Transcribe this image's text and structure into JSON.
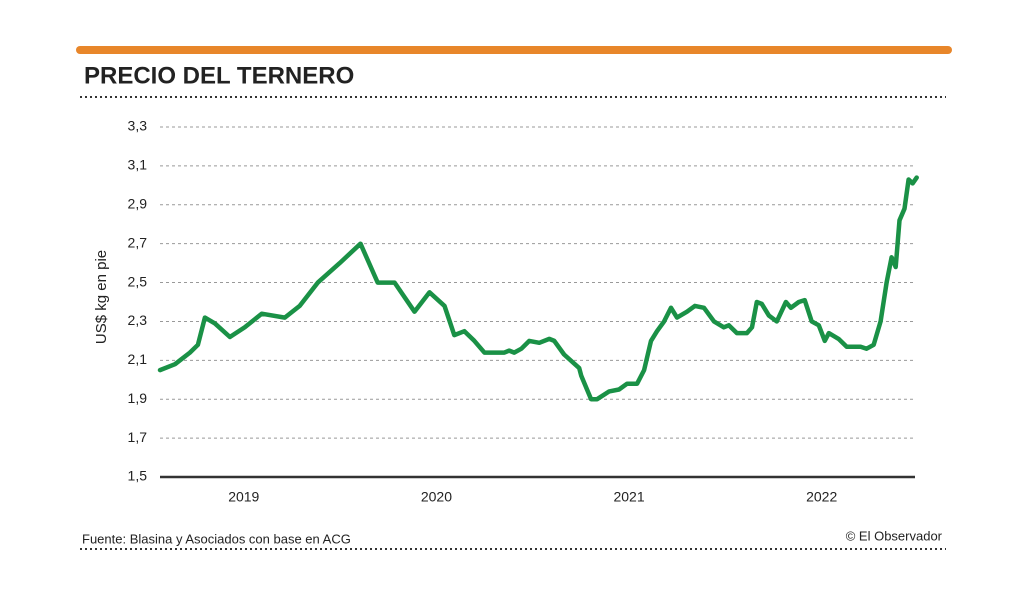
{
  "chart_data": {
    "type": "line",
    "title": "PRECIO DEL TERNERO",
    "y_label": "US$ kg en pie",
    "source": "Fuente: Blasina y Asociados con base en ACG",
    "credit": "© El Observador",
    "x": [
      2018.565,
      2018.643,
      2018.72,
      2018.762,
      2018.798,
      2018.85,
      2018.928,
      2019.005,
      2019.093,
      2019.213,
      2019.29,
      2019.384,
      2019.498,
      2019.606,
      2019.695,
      2019.783,
      2019.886,
      2019.964,
      2020.042,
      2020.093,
      2020.145,
      2020.197,
      2020.249,
      2020.353,
      2020.378,
      2020.404,
      2020.441,
      2020.482,
      2020.534,
      2020.586,
      2020.612,
      2020.663,
      2020.741,
      2020.752,
      2020.803,
      2020.834,
      2020.897,
      2020.948,
      2020.99,
      2021.042,
      2021.078,
      2021.114,
      2021.145,
      2021.182,
      2021.218,
      2021.249,
      2021.301,
      2021.342,
      2021.389,
      2021.441,
      2021.492,
      2021.518,
      2021.56,
      2021.612,
      2021.638,
      2021.663,
      2021.689,
      2021.726,
      2021.767,
      2021.814,
      2021.84,
      2021.881,
      2021.912,
      2021.948,
      2021.985,
      2022.016,
      2022.037,
      2022.088,
      2022.13,
      2022.202,
      2022.233,
      2022.27,
      2022.306,
      2022.337,
      2022.363,
      2022.384,
      2022.404,
      2022.43,
      2022.451,
      2022.472,
      2022.493
    ],
    "series": [
      {
        "name": "US$ kg en pie",
        "color": "#1a9146",
        "values": [
          2.05,
          2.08,
          2.14,
          2.18,
          2.32,
          2.29,
          2.22,
          2.27,
          2.34,
          2.32,
          2.38,
          2.5,
          2.6,
          2.7,
          2.5,
          2.5,
          2.35,
          2.45,
          2.38,
          2.23,
          2.25,
          2.2,
          2.14,
          2.14,
          2.15,
          2.14,
          2.16,
          2.2,
          2.19,
          2.21,
          2.2,
          2.13,
          2.06,
          2.02,
          1.9,
          1.9,
          1.94,
          1.95,
          1.98,
          1.98,
          2.05,
          2.2,
          2.25,
          2.3,
          2.37,
          2.32,
          2.35,
          2.38,
          2.37,
          2.3,
          2.27,
          2.28,
          2.24,
          2.24,
          2.27,
          2.4,
          2.39,
          2.33,
          2.3,
          2.4,
          2.37,
          2.4,
          2.41,
          2.3,
          2.28,
          2.2,
          2.24,
          2.21,
          2.17,
          2.17,
          2.16,
          2.18,
          2.3,
          2.5,
          2.63,
          2.58,
          2.82,
          2.88,
          3.03,
          3.01,
          3.04
        ]
      }
    ],
    "xlim": [
      2018.565,
      2022.5
    ],
    "xticks": [
      2019,
      2020,
      2021,
      2022
    ],
    "ylim": [
      1.5,
      3.3
    ],
    "yticks": [
      {
        "value": 1.5,
        "label": "1,5"
      },
      {
        "value": 1.7,
        "label": "1,7"
      },
      {
        "value": 1.9,
        "label": "1,9"
      },
      {
        "value": 2.1,
        "label": "2,1"
      },
      {
        "value": 2.3,
        "label": "2,3"
      },
      {
        "value": 2.5,
        "label": "2,5"
      },
      {
        "value": 2.7,
        "label": "2,7"
      },
      {
        "value": 2.9,
        "label": "2,9"
      },
      {
        "value": 3.1,
        "label": "3,1"
      },
      {
        "value": 3.3,
        "label": "3,3"
      }
    ],
    "grid": true
  }
}
